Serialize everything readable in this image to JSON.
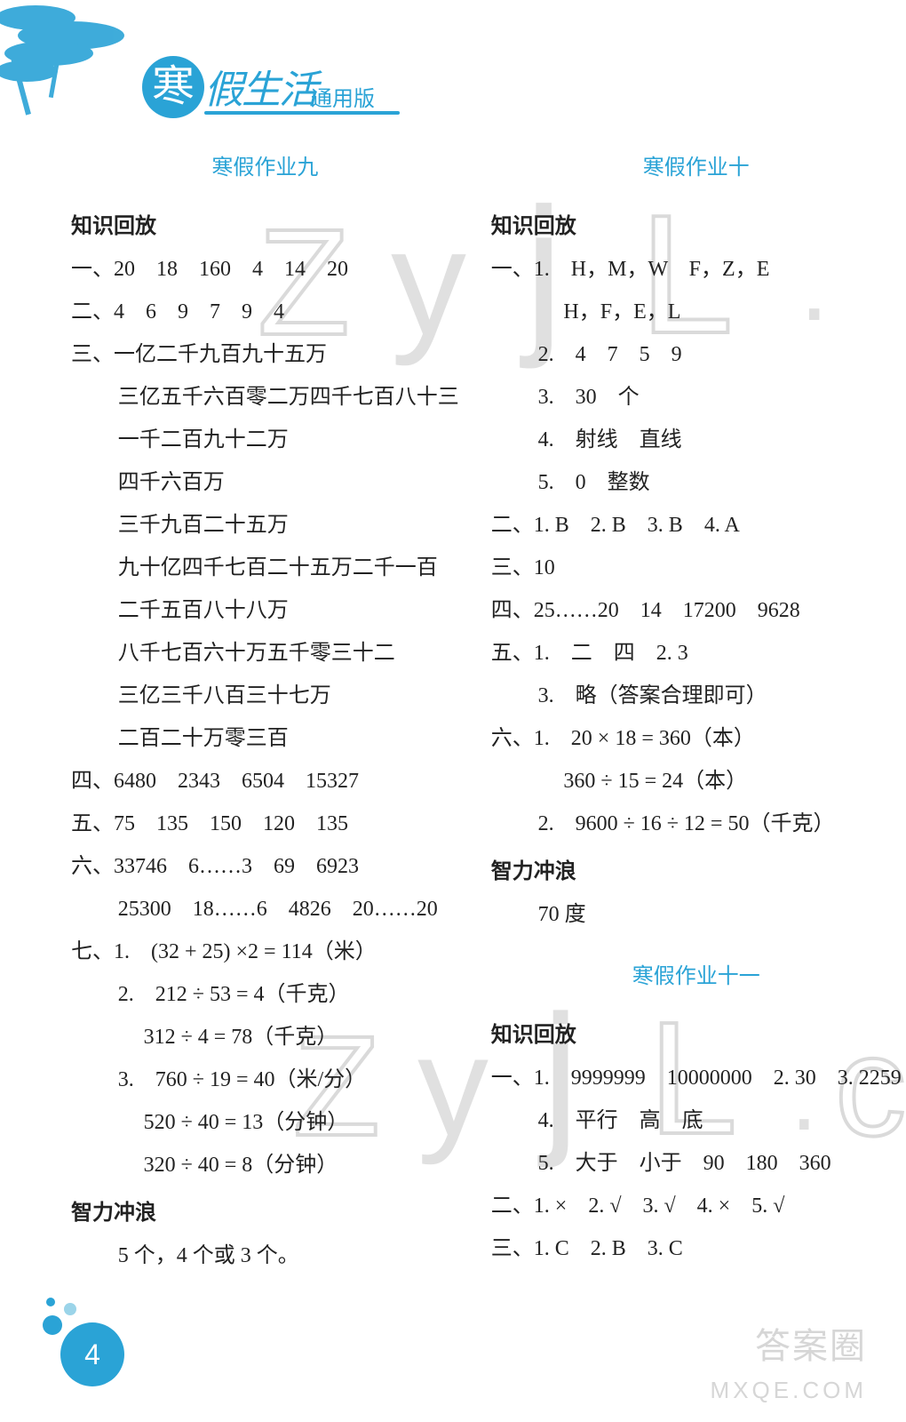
{
  "brand": {
    "circle_char": "寒",
    "text": "假生活",
    "sub": "通用版"
  },
  "page_number": "4",
  "badges": {
    "b1": "答案圈",
    "b2": "MXQE.COM"
  },
  "watermarks": {
    "top": [
      "Z",
      "y",
      "j",
      "L",
      "."
    ],
    "bottom": [
      "Z",
      "y",
      "j",
      "L",
      ".",
      "c"
    ]
  },
  "col_left": {
    "hw_title": "寒假作业九",
    "blocks": [
      {
        "type": "head",
        "text": "知识回放"
      },
      {
        "type": "line",
        "text": "一、20　18　160　4　14　20"
      },
      {
        "type": "line",
        "text": "二、4　6　9　7　9　4"
      },
      {
        "type": "line",
        "text": "三、一亿二千九百九十五万"
      },
      {
        "type": "indent",
        "text": "三亿五千六百零二万四千七百八十三"
      },
      {
        "type": "indent",
        "text": "一千二百九十二万"
      },
      {
        "type": "indent",
        "text": "四千六百万"
      },
      {
        "type": "indent",
        "text": "三千九百二十五万"
      },
      {
        "type": "indent",
        "text": "九十亿四千七百二十五万二千一百"
      },
      {
        "type": "indent",
        "text": "二千五百八十八万"
      },
      {
        "type": "indent",
        "text": "八千七百六十万五千零三十二"
      },
      {
        "type": "indent",
        "text": "三亿三千八百三十七万"
      },
      {
        "type": "indent",
        "text": "二百二十万零三百"
      },
      {
        "type": "line",
        "text": "四、6480　2343　6504　15327"
      },
      {
        "type": "line",
        "text": "五、75　135　150　120　135"
      },
      {
        "type": "line",
        "text": "六、33746　6……3　69　6923"
      },
      {
        "type": "indent",
        "text": "25300　18……6　4826　20……20"
      },
      {
        "type": "line",
        "text": "七、1.　(32 + 25) ×2 = 114（米）"
      },
      {
        "type": "indent",
        "text": "2.　212 ÷ 53 = 4（千克）"
      },
      {
        "type": "indent2",
        "text": "312 ÷ 4 = 78（千克）"
      },
      {
        "type": "indent",
        "text": "3.　760 ÷ 19 = 40（米/分）"
      },
      {
        "type": "indent2",
        "text": "520 ÷ 40 = 13（分钟）"
      },
      {
        "type": "indent2",
        "text": "320 ÷ 40 = 8（分钟）"
      },
      {
        "type": "head",
        "text": "智力冲浪"
      },
      {
        "type": "indent",
        "text": "5 个，4 个或 3 个。"
      }
    ]
  },
  "col_right": {
    "hw_title_1": "寒假作业十",
    "blocks_1": [
      {
        "type": "head",
        "text": "知识回放"
      },
      {
        "type": "line",
        "text": "一、1.　H，M，W　F，Z，E"
      },
      {
        "type": "indent2",
        "text": "H，F，E，L"
      },
      {
        "type": "indent",
        "text": "2.　4　7　5　9"
      },
      {
        "type": "indent",
        "text": "3.　30　个"
      },
      {
        "type": "indent",
        "text": "4.　射线　直线"
      },
      {
        "type": "indent",
        "text": "5.　0　整数"
      },
      {
        "type": "line",
        "text": "二、1. B　2. B　3. B　4. A"
      },
      {
        "type": "line",
        "text": "三、10"
      },
      {
        "type": "line",
        "text": "四、25……20　14　17200　9628"
      },
      {
        "type": "line",
        "text": "五、1.　二　四　2. 3"
      },
      {
        "type": "indent",
        "text": "3.　略（答案合理即可）"
      },
      {
        "type": "line",
        "text": "六、1.　20 × 18 = 360（本）"
      },
      {
        "type": "indent2",
        "text": "360 ÷ 15 = 24（本）"
      },
      {
        "type": "indent",
        "text": "2.　9600 ÷ 16 ÷ 12 = 50（千克）"
      },
      {
        "type": "head",
        "text": "智力冲浪"
      },
      {
        "type": "indent",
        "text": "70 度"
      }
    ],
    "hw_title_2": "寒假作业十一",
    "blocks_2": [
      {
        "type": "head",
        "text": "知识回放"
      },
      {
        "type": "line",
        "text": "一、1.　9999999　10000000　2. 30　3. 2259"
      },
      {
        "type": "indent",
        "text": "4.　平行　高　底"
      },
      {
        "type": "indent",
        "text": "5.　大于　小于　90　180　360"
      },
      {
        "type": "line",
        "text": "二、1. ×　2. √　3. √　4. ×　5. √"
      },
      {
        "type": "line",
        "text": "三、1. C　2. B　3. C"
      }
    ]
  },
  "colors": {
    "brand": "#2aa3d6",
    "text": "#222222",
    "wm": "#c8c8c8",
    "faint": "#d6d6d6"
  }
}
